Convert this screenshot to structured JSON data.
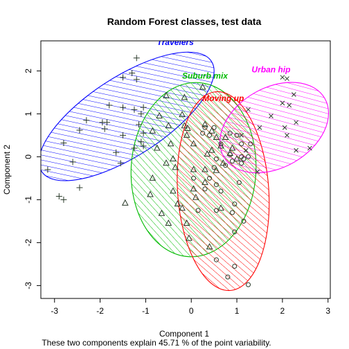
{
  "chart_data": {
    "type": "scatter",
    "title": "Random Forest classes, test data",
    "xlabel": "Component 1",
    "ylabel": "Component 2",
    "caption": "These two components explain 45.71 % of the point variability.",
    "xlim": [
      -3.3,
      3.05
    ],
    "ylim": [
      -3.3,
      2.7
    ],
    "xticks": [
      -3,
      -2,
      -1,
      0,
      1,
      2,
      3
    ],
    "yticks": [
      -3,
      -2,
      -1,
      0,
      1,
      2
    ],
    "grid": false,
    "legend": "none",
    "clusters": [
      {
        "name": "Travelers",
        "color": "#0000ff",
        "marker": "plus",
        "ellipse": {
          "cx": -1.42,
          "cy": 0.94,
          "rx": 2.22,
          "ry": 0.92,
          "angle_deg": 33
        },
        "label_pos": [
          -0.35,
          2.6
        ],
        "points": [
          [
            -1.2,
            2.3
          ],
          [
            -1.3,
            1.95
          ],
          [
            -1.2,
            1.8
          ],
          [
            -1.5,
            1.85
          ],
          [
            -1.8,
            1.2
          ],
          [
            -1.5,
            1.15
          ],
          [
            -1.25,
            1.1
          ],
          [
            -1.05,
            1.15
          ],
          [
            -1.1,
            1.0
          ],
          [
            -2.3,
            0.85
          ],
          [
            -1.95,
            0.8
          ],
          [
            -1.85,
            0.8
          ],
          [
            -1.9,
            0.65
          ],
          [
            -1.15,
            0.75
          ],
          [
            -2.45,
            0.62
          ],
          [
            -1.5,
            0.5
          ],
          [
            -1.05,
            0.55
          ],
          [
            -1.1,
            0.35
          ],
          [
            -2.8,
            0.32
          ],
          [
            -1.05,
            0.25
          ],
          [
            -1.25,
            0.2
          ],
          [
            -1.65,
            0.1
          ],
          [
            -2.6,
            -0.12
          ],
          [
            -1.55,
            -0.15
          ],
          [
            -3.15,
            -0.3
          ],
          [
            -2.45,
            -0.72
          ],
          [
            -2.9,
            -0.92
          ],
          [
            -2.8,
            -1.0
          ]
        ]
      },
      {
        "name": "Suburb mix",
        "color": "#00bb00",
        "marker": "triangle",
        "ellipse": {
          "cx": 0.05,
          "cy": -0.3,
          "rx": 1.37,
          "ry": 2.03,
          "angle_deg": -3
        },
        "label_pos": [
          0.3,
          1.82
        ],
        "points": [
          [
            -0.55,
            1.42
          ],
          [
            -0.15,
            1.38
          ],
          [
            0.25,
            1.62
          ],
          [
            -0.7,
            0.95
          ],
          [
            -0.2,
            0.98
          ],
          [
            -0.5,
            0.72
          ],
          [
            -0.15,
            0.72
          ],
          [
            -0.08,
            0.66
          ],
          [
            -0.85,
            0.6
          ],
          [
            -0.1,
            0.5
          ],
          [
            0.3,
            0.75
          ],
          [
            0.45,
            0.6
          ],
          [
            0.75,
            0.45
          ],
          [
            -0.45,
            0.3
          ],
          [
            0.05,
            0.3
          ],
          [
            -0.75,
            0.2
          ],
          [
            0.55,
            0.45
          ],
          [
            0.65,
            0.25
          ],
          [
            0.9,
            0.2
          ],
          [
            -0.55,
            -0.15
          ],
          [
            -0.4,
            -0.05
          ],
          [
            0.45,
            0.15
          ],
          [
            0.85,
            0.08
          ],
          [
            0.35,
            0.06
          ],
          [
            1.0,
            -0.05
          ],
          [
            -0.35,
            -0.25
          ],
          [
            0.7,
            -0.15
          ],
          [
            0.05,
            -0.3
          ],
          [
            0.3,
            -0.3
          ],
          [
            0.55,
            -0.32
          ],
          [
            -0.85,
            -0.5
          ],
          [
            0.3,
            -0.6
          ],
          [
            0.05,
            -0.75
          ],
          [
            -0.4,
            -0.8
          ],
          [
            -0.9,
            -0.88
          ],
          [
            0.1,
            -0.95
          ],
          [
            -1.45,
            -1.08
          ],
          [
            -0.3,
            -1.1
          ],
          [
            -0.2,
            -1.2
          ],
          [
            0.65,
            -1.2
          ],
          [
            -0.65,
            -1.32
          ],
          [
            -0.1,
            -1.55
          ],
          [
            -0.5,
            -1.55
          ],
          [
            -0.05,
            -1.9
          ],
          [
            0.4,
            -2.1
          ]
        ]
      },
      {
        "name": "Moving up",
        "color": "#ff0000",
        "marker": "circle",
        "ellipse": {
          "cx": 0.7,
          "cy": -0.8,
          "rx": 1.0,
          "ry": 2.32,
          "angle_deg": 4
        },
        "label_pos": [
          0.7,
          1.3
        ],
        "points": [
          [
            0.3,
            0.68
          ],
          [
            0.5,
            0.68
          ],
          [
            1.0,
            0.5
          ],
          [
            0.85,
            0.55
          ],
          [
            0.25,
            0.55
          ],
          [
            0.4,
            0.5
          ],
          [
            0.65,
            0.3
          ],
          [
            1.1,
            0.3
          ],
          [
            1.3,
            0.3
          ],
          [
            0.85,
            0.05
          ],
          [
            1.1,
            0.0
          ],
          [
            1.25,
            0.0
          ],
          [
            0.55,
            -0.05
          ],
          [
            1.15,
            -0.05
          ],
          [
            0.9,
            -0.1
          ],
          [
            0.75,
            -0.2
          ],
          [
            0.5,
            -0.25
          ],
          [
            1.1,
            -0.15
          ],
          [
            0.05,
            -0.5
          ],
          [
            0.4,
            -0.5
          ],
          [
            1.05,
            -0.6
          ],
          [
            0.55,
            -0.65
          ],
          [
            0.3,
            -0.75
          ],
          [
            0.65,
            -0.8
          ],
          [
            0.95,
            -1.1
          ],
          [
            0.55,
            -1.25
          ],
          [
            0.15,
            -1.25
          ],
          [
            0.9,
            -1.3
          ],
          [
            1.15,
            -1.5
          ],
          [
            0.95,
            -1.75
          ],
          [
            0.55,
            -2.4
          ],
          [
            0.95,
            -2.55
          ],
          [
            0.8,
            -2.8
          ],
          [
            1.25,
            -2.98
          ]
        ]
      },
      {
        "name": "Urban hip",
        "color": "#ff00ff",
        "marker": "cross",
        "ellipse": {
          "cx": 1.82,
          "cy": 0.68,
          "rx": 1.28,
          "ry": 0.93,
          "angle_deg": 30
        },
        "label_pos": [
          1.75,
          1.97
        ],
        "points": [
          [
            2.0,
            1.85
          ],
          [
            2.1,
            1.82
          ],
          [
            2.15,
            1.2
          ],
          [
            2.25,
            1.45
          ],
          [
            2.0,
            1.25
          ],
          [
            1.25,
            1.1
          ],
          [
            1.75,
            0.95
          ],
          [
            2.3,
            0.8
          ],
          [
            1.5,
            0.68
          ],
          [
            2.05,
            0.68
          ],
          [
            1.1,
            0.5
          ],
          [
            2.1,
            0.5
          ],
          [
            1.2,
            0.15
          ],
          [
            2.3,
            0.15
          ],
          [
            2.6,
            0.2
          ],
          [
            1.45,
            -0.35
          ]
        ]
      }
    ]
  }
}
